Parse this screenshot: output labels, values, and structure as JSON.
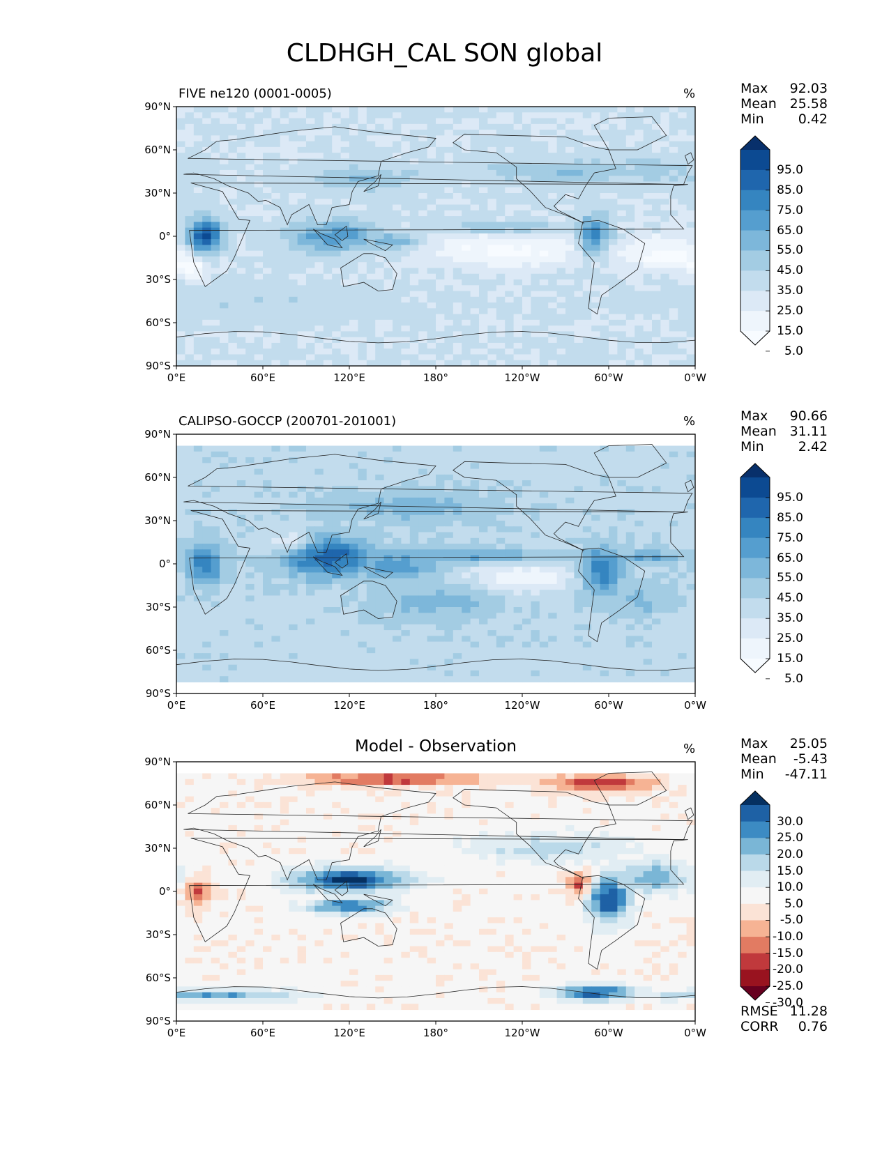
{
  "chart_data": {
    "type": "heatmap",
    "title": "CLDHGH_CAL SON global",
    "xlabel": "",
    "ylabel": "",
    "x_ticks": [
      "0°E",
      "60°E",
      "120°E",
      "180°",
      "120°W",
      "60°W",
      "0°W"
    ],
    "y_ticks": [
      "90°N",
      "60°N",
      "30°N",
      "0°",
      "30°S",
      "60°S",
      "90°S"
    ],
    "xlim": [
      0,
      360
    ],
    "ylim": [
      -90,
      90
    ],
    "panels": [
      {
        "name": "model",
        "left_title": "FIVE ne120 (0001-0005)",
        "center_title": "",
        "units": "%",
        "stats": [
          {
            "label": "Max",
            "value": "92.03"
          },
          {
            "label": "Mean",
            "value": "25.58"
          },
          {
            "label": "Min",
            "value": "0.42"
          }
        ],
        "colorbar_levels": [
          "95.0",
          "85.0",
          "75.0",
          "65.0",
          "55.0",
          "45.0",
          "35.0",
          "25.0",
          "15.0",
          "5.0"
        ],
        "colorbar_colors": [
          "#08306b",
          "#0c4a92",
          "#1f66ad",
          "#3585c0",
          "#559ecf",
          "#7db7da",
          "#a3cce3",
          "#c2dced",
          "#dce9f6",
          "#eef5fc",
          "#f7fbff"
        ],
        "lat_band_lines": [
          -70,
          60
        ],
        "data_coverage": [
          -90,
          90
        ],
        "blobs": [
          {
            "lon": 20,
            "lat": 0,
            "level": 0.85,
            "sx": 8,
            "sy": 9
          },
          {
            "lon": 110,
            "lat": 0,
            "level": 0.62,
            "sx": 22,
            "sy": 8
          },
          {
            "lon": 150,
            "lat": -4,
            "level": 0.55,
            "sx": 14,
            "sy": 5
          },
          {
            "lon": 290,
            "lat": 0,
            "level": 0.7,
            "sx": 8,
            "sy": 10
          },
          {
            "lon": 230,
            "lat": 6,
            "level": 0.45,
            "sx": 35,
            "sy": 3
          },
          {
            "lon": 130,
            "lat": 40,
            "level": 0.45,
            "sx": 30,
            "sy": 6
          },
          {
            "lon": 270,
            "lat": 45,
            "level": 0.45,
            "sx": 40,
            "sy": 6
          },
          {
            "lon": 330,
            "lat": 45,
            "level": 0.4,
            "sx": 25,
            "sy": 8
          },
          {
            "lon": 60,
            "lat": -45,
            "level": 0.35,
            "sx": 60,
            "sy": 8
          }
        ],
        "base_level": 0.28,
        "dry_zones": [
          {
            "lon": 230,
            "lat": -10,
            "sx": 45,
            "sy": 8
          },
          {
            "lon": 340,
            "lat": -12,
            "sx": 20,
            "sy": 8
          },
          {
            "lon": 10,
            "lat": -22,
            "sx": 10,
            "sy": 5
          }
        ]
      },
      {
        "name": "obs",
        "left_title": "CALIPSO-GOCCP (200701-201001)",
        "center_title": "",
        "units": "%",
        "stats": [
          {
            "label": "Max",
            "value": "90.66"
          },
          {
            "label": "Mean",
            "value": "31.11"
          },
          {
            "label": "Min",
            "value": "2.42"
          }
        ],
        "colorbar_levels": [
          "95.0",
          "85.0",
          "75.0",
          "65.0",
          "55.0",
          "45.0",
          "35.0",
          "25.0",
          "15.0",
          "5.0"
        ],
        "colorbar_colors": [
          "#08306b",
          "#0c4a92",
          "#1f66ad",
          "#3585c0",
          "#559ecf",
          "#7db7da",
          "#a3cce3",
          "#c2dced",
          "#dce9f6",
          "#eef5fc",
          "#f7fbff"
        ],
        "lat_band_lines": [
          -70,
          60
        ],
        "data_coverage": [
          -82,
          82
        ],
        "blobs": [
          {
            "lon": 20,
            "lat": 0,
            "level": 0.7,
            "sx": 9,
            "sy": 10
          },
          {
            "lon": 105,
            "lat": 5,
            "level": 0.8,
            "sx": 22,
            "sy": 10
          },
          {
            "lon": 150,
            "lat": 0,
            "level": 0.6,
            "sx": 25,
            "sy": 8
          },
          {
            "lon": 210,
            "lat": 5,
            "level": 0.55,
            "sx": 35,
            "sy": 4
          },
          {
            "lon": 295,
            "lat": -5,
            "level": 0.72,
            "sx": 10,
            "sy": 12
          },
          {
            "lon": 325,
            "lat": 5,
            "level": 0.55,
            "sx": 20,
            "sy": 4
          },
          {
            "lon": 160,
            "lat": 40,
            "level": 0.5,
            "sx": 40,
            "sy": 8
          },
          {
            "lon": 180,
            "lat": -25,
            "level": 0.5,
            "sx": 30,
            "sy": 10
          },
          {
            "lon": 320,
            "lat": -25,
            "level": 0.48,
            "sx": 20,
            "sy": 8
          }
        ],
        "base_level": 0.34,
        "dry_zones": [
          {
            "lon": 240,
            "lat": -10,
            "sx": 30,
            "sy": 7
          },
          {
            "lon": 80,
            "lat": 15,
            "sx": 12,
            "sy": 6
          }
        ]
      },
      {
        "name": "diff",
        "left_title": "",
        "center_title": "Model - Observation",
        "units": "%",
        "stats": [
          {
            "label": "Max",
            "value": "25.05"
          },
          {
            "label": "Mean",
            "value": "-5.43"
          },
          {
            "label": "Min",
            "value": "-47.11"
          }
        ],
        "colorbar_levels": [
          "30.0",
          "25.0",
          "20.0",
          "15.0",
          "10.0",
          "5.0",
          "-5.0",
          "-10.0",
          "-15.0",
          "-20.0",
          "-25.0",
          "-30.0"
        ],
        "colorbar_colors": [
          "#053061",
          "#1e61a5",
          "#3c8bc3",
          "#7ab6d6",
          "#bad9e9",
          "#e1edf3",
          "#f6f6f6",
          "#fbe3d6",
          "#f6b394",
          "#e27b62",
          "#c0393c",
          "#99131f",
          "#67001f"
        ],
        "lat_band_lines": [
          -70,
          60
        ],
        "data_coverage": [
          -82,
          82
        ],
        "blobs": [
          {
            "lon": 120,
            "lat": 8,
            "level": 0.95,
            "sx": 28,
            "sy": 6
          },
          {
            "lon": 120,
            "lat": -10,
            "level": 0.85,
            "sx": 20,
            "sy": 4
          },
          {
            "lon": 300,
            "lat": -5,
            "level": 0.92,
            "sx": 10,
            "sy": 12
          },
          {
            "lon": 290,
            "lat": -70,
            "level": 0.88,
            "sx": 20,
            "sy": 4
          },
          {
            "lon": 30,
            "lat": -72,
            "level": 0.75,
            "sx": 40,
            "sy": 3
          },
          {
            "lon": 330,
            "lat": 10,
            "level": 0.75,
            "sx": 20,
            "sy": 8
          },
          {
            "lon": 260,
            "lat": 30,
            "level": 0.65,
            "sx": 40,
            "sy": 8
          }
        ],
        "base_level": 0.48,
        "wet_zones": [
          {
            "lon": 15,
            "lat": 0,
            "sx": 6,
            "sy": 6
          },
          {
            "lon": 280,
            "lat": 5,
            "sx": 6,
            "sy": 6
          },
          {
            "lon": 150,
            "lat": 78,
            "sx": 40,
            "sy": 3
          },
          {
            "lon": 295,
            "lat": 75,
            "sx": 25,
            "sy": 4
          }
        ]
      }
    ],
    "diff_extra": {
      "rmse_label": "RMSE",
      "rmse_value": "11.28",
      "corr_label": "CORR",
      "corr_value": "0.76"
    }
  }
}
